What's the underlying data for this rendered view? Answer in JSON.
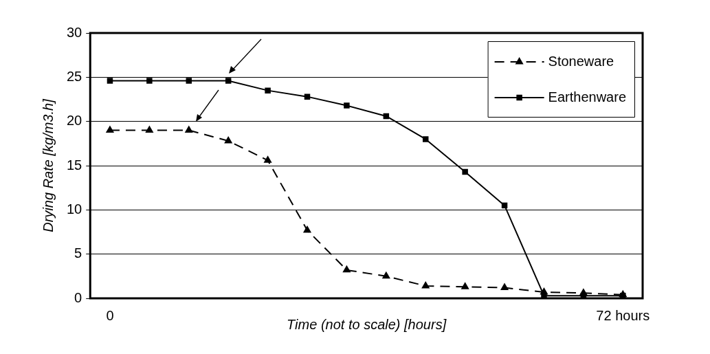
{
  "chart_data": {
    "type": "line",
    "xlabel": "Time (not to scale) [hours]",
    "ylabel": "Drying Rate [kg/m3.h]",
    "categories": [
      "0",
      null,
      null,
      null,
      null,
      null,
      null,
      null,
      null,
      null,
      null,
      null,
      null,
      "72 hours"
    ],
    "series": [
      {
        "name": "Stoneware",
        "color": "#000000",
        "marker": "triangle",
        "line_style": "dashed",
        "values": [
          19,
          19,
          19,
          17.8,
          15.6,
          7.7,
          3.2,
          2.5,
          1.4,
          1.3,
          1.2,
          0.7,
          0.6,
          0.4
        ]
      },
      {
        "name": "Earthenware",
        "color": "#000000",
        "marker": "square",
        "line_style": "solid",
        "values": [
          24.6,
          24.6,
          24.6,
          24.6,
          23.5,
          22.8,
          21.8,
          20.6,
          18,
          14.3,
          10.5,
          0.3,
          0.3,
          0.3
        ]
      }
    ],
    "ylim": [
      0,
      30
    ],
    "yticks": [
      0,
      5,
      10,
      15,
      20,
      25,
      30
    ],
    "grid": "y",
    "legend": "top right"
  }
}
